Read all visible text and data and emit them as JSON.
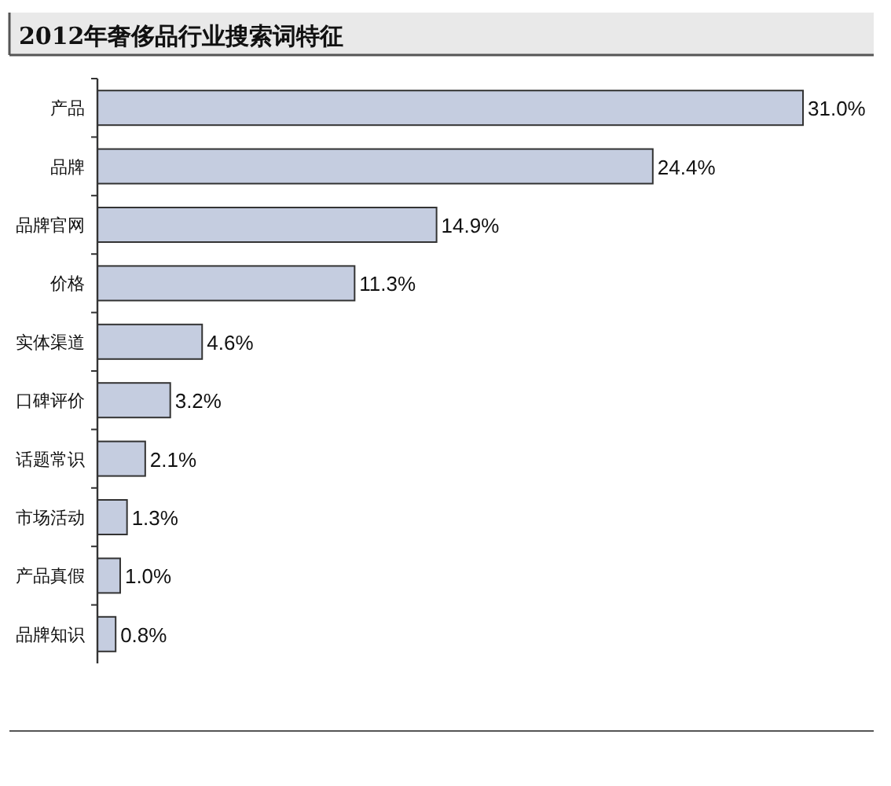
{
  "chart_data": {
    "type": "bar",
    "orientation": "horizontal",
    "title": "2012年奢侈品行业搜索词特征",
    "categories": [
      "产品",
      "品牌",
      "品牌官网",
      "价格",
      "实体渠道",
      "口碑评价",
      "话题常识",
      "市场活动",
      "产品真假",
      "品牌知识"
    ],
    "values": [
      31.0,
      24.4,
      14.9,
      11.3,
      4.6,
      3.2,
      2.1,
      1.3,
      1.0,
      0.8
    ],
    "value_labels": [
      "31.0%",
      "24.4%",
      "14.9%",
      "11.3%",
      "4.6%",
      "3.2%",
      "2.1%",
      "1.3%",
      "1.0%",
      "0.8%"
    ],
    "color": "#c5cde0"
  }
}
